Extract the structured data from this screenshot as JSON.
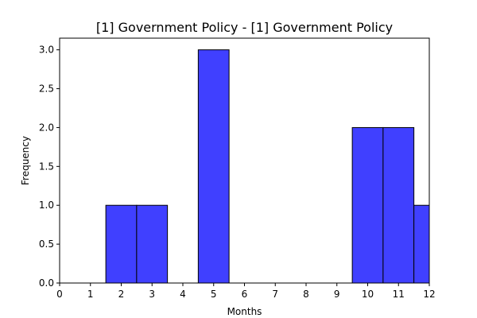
{
  "chart_data": {
    "type": "bar",
    "title": "[1] Government Policy - [1] Government Policy",
    "xlabel": "Months",
    "ylabel": "Frequency",
    "xlim": [
      0,
      12
    ],
    "ylim": [
      0,
      3.15
    ],
    "xticks": [
      "0",
      "1",
      "2",
      "3",
      "4",
      "5",
      "6",
      "7",
      "8",
      "9",
      "10",
      "11",
      "12"
    ],
    "yticks": [
      "0.0",
      "0.5",
      "1.0",
      "1.5",
      "2.0",
      "2.5",
      "3.0"
    ],
    "bins": [
      {
        "x0": 1.5,
        "x1": 2.5,
        "value": 1
      },
      {
        "x0": 2.5,
        "x1": 3.5,
        "value": 1
      },
      {
        "x0": 4.5,
        "x1": 5.5,
        "value": 3
      },
      {
        "x0": 9.5,
        "x1": 10.5,
        "value": 2
      },
      {
        "x0": 10.5,
        "x1": 11.5,
        "value": 2
      },
      {
        "x0": 11.5,
        "x1": 12.5,
        "value": 1
      }
    ],
    "bar_color": "#4040ff",
    "edge_color": "#000000",
    "grid": false,
    "legend": "none"
  }
}
